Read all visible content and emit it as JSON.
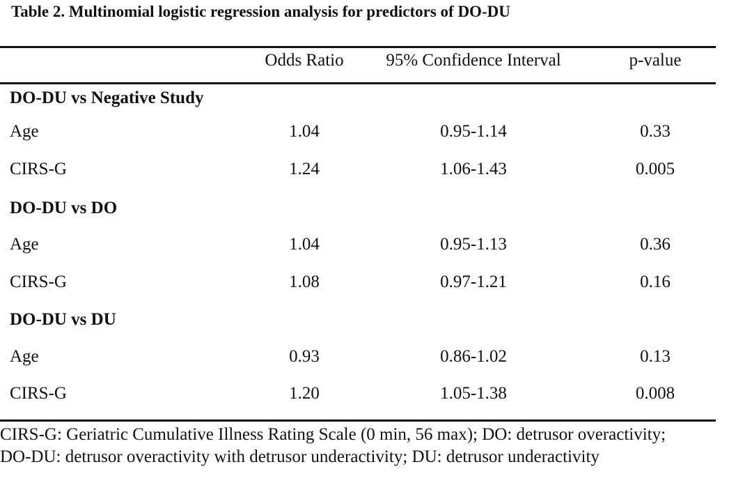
{
  "title": "Table 2. Multinomial logistic regression analysis for predictors of DO-DU",
  "headers": {
    "odds_ratio": "Odds Ratio",
    "ci": "95% Confidence Interval",
    "p_value": "p-value"
  },
  "groups": [
    {
      "label": "DO-DU vs Negative Study",
      "rows": [
        {
          "label": "Age",
          "odds_ratio": "1.04",
          "ci": "0.95-1.14",
          "p_value": "0.33"
        },
        {
          "label": "CIRS-G",
          "odds_ratio": "1.24",
          "ci": "1.06-1.43",
          "p_value": "0.005"
        }
      ]
    },
    {
      "label": "DO-DU vs DO",
      "rows": [
        {
          "label": "Age",
          "odds_ratio": "1.04",
          "ci": "0.95-1.13",
          "p_value": "0.36"
        },
        {
          "label": "CIRS-G",
          "odds_ratio": "1.08",
          "ci": "0.97-1.21",
          "p_value": "0.16"
        }
      ]
    },
    {
      "label": "DO-DU vs DU",
      "rows": [
        {
          "label": "Age",
          "odds_ratio": "0.93",
          "ci": "0.86-1.02",
          "p_value": "0.13"
        },
        {
          "label": "CIRS-G",
          "odds_ratio": "1.20",
          "ci": "1.05-1.38",
          "p_value": "0.008"
        }
      ]
    }
  ],
  "footnote": [
    "CIRS-G: Geriatric Cumulative Illness Rating Scale (0 min, 56 max); DO: detrusor overactivity;",
    "DO-DU: detrusor overactivity with detrusor underactivity; DU: detrusor underactivity"
  ]
}
